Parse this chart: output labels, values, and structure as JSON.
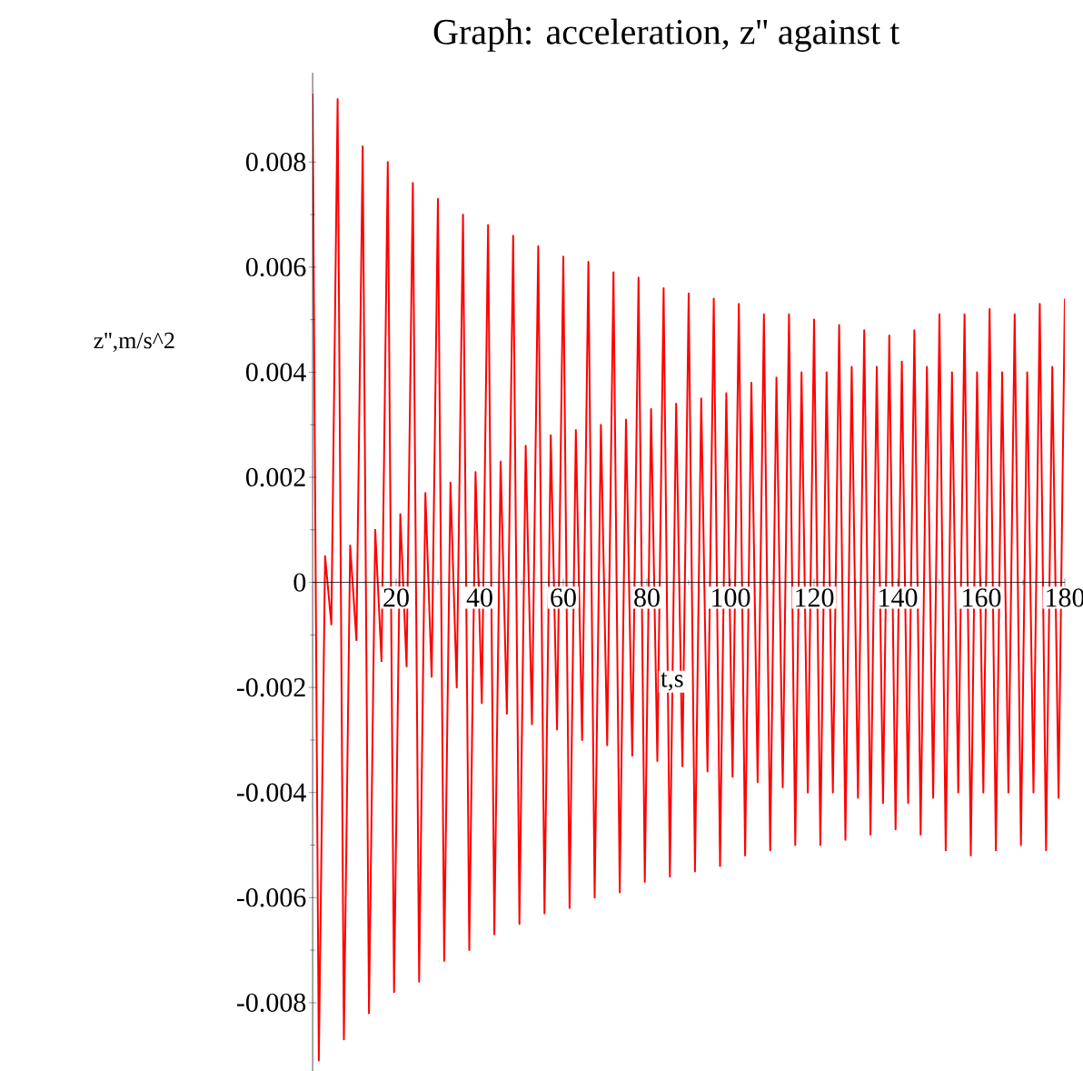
{
  "chart_data": {
    "type": "line",
    "title": "Graph: acceleration, z'' against t",
    "xlabel": "t,s",
    "ylabel": "z'',m/s^2",
    "x": [
      0,
      1.5,
      3,
      4.5,
      6,
      7.5,
      9,
      10.5,
      12,
      13.5,
      15,
      16.5,
      18,
      19.5,
      21,
      22.5,
      24,
      25.5,
      27,
      28.5,
      30,
      31.5,
      33,
      34.5,
      36,
      37.5,
      39,
      40.5,
      42,
      43.5,
      45,
      46.5,
      48,
      49.5,
      51,
      52.5,
      54,
      55.5,
      57,
      58.5,
      60,
      61.5,
      63,
      64.5,
      66,
      67.5,
      69,
      70.5,
      72,
      73.5,
      75,
      76.5,
      78,
      79.5,
      81,
      82.5,
      84,
      85.5,
      87,
      88.5,
      90,
      91.5,
      93,
      94.5,
      96,
      97.5,
      99,
      100.5,
      102,
      103.5,
      105,
      106.5,
      108,
      109.5,
      111,
      112.5,
      114,
      115.5,
      117,
      118.5,
      120,
      121.5,
      123,
      124.5,
      126,
      127.5,
      129,
      130.5,
      132,
      133.5,
      135,
      136.5,
      138,
      139.5,
      141,
      142.5,
      144,
      145.5,
      147,
      148.5,
      150,
      151.5,
      153,
      154.5,
      156,
      157.5,
      159,
      160.5,
      162,
      163.5,
      165,
      166.5,
      168,
      169.5,
      171,
      172.5,
      174,
      175.5,
      177,
      178.5,
      180
    ],
    "series": [
      {
        "color": "#ff0000",
        "values": [
          0.0093,
          -0.0091,
          0.0005,
          -0.0008,
          0.0092,
          -0.0087,
          0.0007,
          -0.0011,
          0.0083,
          -0.0082,
          0.001,
          -0.0015,
          0.008,
          -0.0078,
          0.0013,
          -0.0016,
          0.0076,
          -0.0076,
          0.0017,
          -0.0018,
          0.0073,
          -0.0072,
          0.0019,
          -0.002,
          0.007,
          -0.007,
          0.0021,
          -0.0023,
          0.0068,
          -0.0067,
          0.0023,
          -0.0025,
          0.0066,
          -0.0065,
          0.0026,
          -0.0027,
          0.0064,
          -0.0063,
          0.0028,
          -0.0028,
          0.0062,
          -0.0062,
          0.0029,
          -0.003,
          0.0061,
          -0.006,
          0.003,
          -0.0031,
          0.0059,
          -0.0059,
          0.0031,
          -0.0033,
          0.0058,
          -0.0057,
          0.0033,
          -0.0034,
          0.0056,
          -0.0056,
          0.0034,
          -0.0035,
          0.0055,
          -0.0055,
          0.0035,
          -0.0036,
          0.0054,
          -0.0054,
          0.0036,
          -0.0037,
          0.0053,
          -0.0052,
          0.0038,
          -0.0038,
          0.0051,
          -0.0051,
          0.0039,
          -0.0039,
          0.0051,
          -0.005,
          0.004,
          -0.004,
          0.005,
          -0.005,
          0.004,
          -0.004,
          0.0049,
          -0.0049,
          0.0041,
          -0.0041,
          0.0048,
          -0.0048,
          0.0041,
          -0.0042,
          0.0047,
          -0.0047,
          0.0042,
          -0.0042,
          0.0048,
          -0.0048,
          0.0041,
          -0.0041,
          0.0051,
          -0.0051,
          0.004,
          -0.004,
          0.0051,
          -0.0052,
          0.004,
          -0.004,
          0.0052,
          -0.0051,
          0.004,
          -0.004,
          0.0051,
          -0.005,
          0.004,
          -0.004,
          0.0053,
          -0.0051,
          0.0041,
          -0.0041,
          0.0054
        ]
      }
    ],
    "xlim": [
      0,
      180
    ],
    "ylim": [
      -0.0093,
      0.0097
    ],
    "xticks": [
      20,
      40,
      60,
      80,
      100,
      120,
      140,
      160,
      180
    ],
    "yticks": [
      -0.008,
      -0.006,
      -0.004,
      -0.002,
      0,
      0.002,
      0.004,
      0.006,
      0.008
    ],
    "marker": "none",
    "line_style": "solid"
  }
}
